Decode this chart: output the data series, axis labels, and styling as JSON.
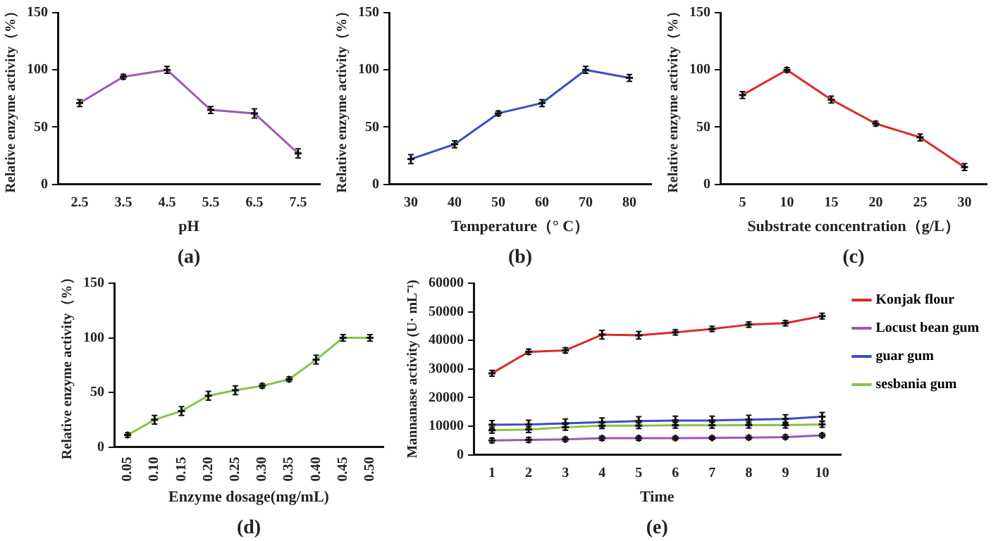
{
  "chart_data": [
    {
      "type": "line",
      "categories": [
        "2.5",
        "3.5",
        "4.5",
        "5.5",
        "6.5",
        "7.5"
      ],
      "xlabel": "pH",
      "ylabel": "Relative enzyme activity（%）",
      "ylim": [
        0,
        150
      ],
      "yticks": [
        0,
        50,
        100,
        150
      ],
      "grid": false,
      "legend": false,
      "marker": "cross",
      "line_style": "solid",
      "annotations": [
        "(a)"
      ],
      "series": [
        {
          "color": "#9b59b6",
          "values": [
            71,
            94,
            100,
            65,
            62,
            27
          ],
          "errors": [
            3,
            2,
            3,
            3,
            4,
            4
          ]
        }
      ]
    },
    {
      "type": "line",
      "categories": [
        "30",
        "40",
        "50",
        "60",
        "70",
        "80"
      ],
      "xlabel": "Temperature（° C）",
      "ylabel": "Relative enzyme activity（%）",
      "ylim": [
        0,
        150
      ],
      "yticks": [
        0,
        50,
        100,
        150
      ],
      "grid": false,
      "legend": false,
      "marker": "cross",
      "line_style": "solid",
      "annotations": [
        "(b)"
      ],
      "series": [
        {
          "color": "#3a4fc4",
          "values": [
            22,
            35,
            62,
            71,
            100,
            93
          ],
          "errors": [
            4,
            3,
            2,
            3,
            3,
            3
          ]
        }
      ]
    },
    {
      "type": "line",
      "categories": [
        "5",
        "10",
        "15",
        "20",
        "25",
        "30"
      ],
      "xlabel": "Substrate concentration（g/L）",
      "ylabel": "Relative enzyme activity（%）",
      "ylim": [
        0,
        150
      ],
      "yticks": [
        0,
        50,
        100,
        150
      ],
      "grid": false,
      "legend": false,
      "marker": "cross",
      "line_style": "solid",
      "annotations": [
        "(c)"
      ],
      "series": [
        {
          "color": "#d92b2b",
          "values": [
            78,
            100,
            74,
            53,
            41,
            15
          ],
          "errors": [
            3,
            2,
            3,
            2,
            3,
            3
          ]
        }
      ]
    },
    {
      "type": "line",
      "categories": [
        "0.05",
        "0.10",
        "0.15",
        "0.20",
        "0.25",
        "0.30",
        "0.35",
        "0.40",
        "0.45",
        "0.50"
      ],
      "xlabel": "Enzyme dosage(mg/mL)",
      "ylabel": "Relative enzyme activity（%）",
      "ylim": [
        0,
        150
      ],
      "yticks": [
        0,
        50,
        100,
        150
      ],
      "grid": false,
      "legend": false,
      "marker": "cross",
      "line_style": "solid",
      "annotations": [
        "(d)"
      ],
      "series": [
        {
          "color": "#8bc34a",
          "values": [
            11,
            25,
            33,
            47,
            52,
            56,
            62,
            80,
            100,
            100
          ],
          "errors": [
            2,
            4,
            4,
            4,
            4,
            2,
            2,
            4,
            3,
            3
          ]
        }
      ]
    },
    {
      "type": "line",
      "categories": [
        "1",
        "2",
        "3",
        "4",
        "5",
        "6",
        "7",
        "8",
        "9",
        "10"
      ],
      "xlabel": "Time",
      "ylabel": "Mannanase activity (U· mL⁻¹)",
      "ylim": [
        0,
        60000
      ],
      "yticks": [
        0,
        10000,
        20000,
        30000,
        40000,
        50000,
        60000
      ],
      "grid": false,
      "legend": "right",
      "marker": "cross",
      "line_style": "solid",
      "annotations": [
        "(e)"
      ],
      "series": [
        {
          "name": "Konjak flour",
          "color": "#d92b2b",
          "values": [
            28500,
            36000,
            36500,
            42000,
            41800,
            42800,
            44000,
            45500,
            46000,
            48500
          ],
          "errors": [
            1000,
            900,
            900,
            1500,
            1300,
            900,
            900,
            900,
            900,
            1000
          ]
        },
        {
          "name": "Locust bean gum",
          "color": "#9b59b6",
          "values": [
            5000,
            5200,
            5400,
            5800,
            5800,
            5800,
            5900,
            6000,
            6200,
            6800
          ],
          "errors": [
            800,
            800,
            700,
            700,
            700,
            600,
            600,
            700,
            700,
            700
          ]
        },
        {
          "name": "guar gum",
          "color": "#3a4fc4",
          "values": [
            10500,
            10600,
            11000,
            11400,
            11800,
            12000,
            12000,
            12300,
            12500,
            13300
          ],
          "errors": [
            1500,
            1500,
            1500,
            1500,
            1500,
            1500,
            1500,
            1500,
            1500,
            1500
          ]
        },
        {
          "name": "sesbania gum",
          "color": "#8bc34a",
          "values": [
            8600,
            8800,
            9600,
            10200,
            10200,
            10300,
            10300,
            10400,
            10400,
            10600
          ],
          "errors": [
            1000,
            1000,
            1000,
            1000,
            1000,
            1000,
            1000,
            1000,
            1000,
            1000
          ]
        }
      ]
    }
  ]
}
